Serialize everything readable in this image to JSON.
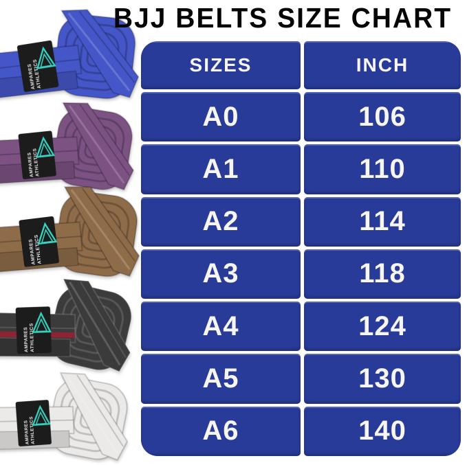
{
  "title": "BJJ BELTS SIZE CHART",
  "table": {
    "headers": [
      "SIZES",
      "INCH"
    ],
    "rows": [
      [
        "A0",
        "106"
      ],
      [
        "A1",
        "110"
      ],
      [
        "A2",
        "114"
      ],
      [
        "A3",
        "118"
      ],
      [
        "A4",
        "124"
      ],
      [
        "A5",
        "130"
      ],
      [
        "A6",
        "140"
      ]
    ],
    "bg_color": "#293b98",
    "text_color": "#f7f5ef"
  },
  "chart_data": {
    "type": "table",
    "title": "BJJ BELTS SIZE CHART",
    "columns": [
      "SIZES",
      "INCH"
    ],
    "rows": [
      [
        "A0",
        106
      ],
      [
        "A1",
        110
      ],
      [
        "A2",
        114
      ],
      [
        "A3",
        118
      ],
      [
        "A4",
        124
      ],
      [
        "A5",
        130
      ],
      [
        "A6",
        140
      ]
    ]
  },
  "brand_label": {
    "line1": "AMPARES",
    "line2": "ATHLETICS",
    "logo_color": "#35d4c2",
    "bg_color": "#1c1c1c",
    "text_color": "#e8e8e8"
  },
  "belts": [
    {
      "id": "blue",
      "name": "blue-belt",
      "color": "#4557c8",
      "shade": "rgba(0,0,0,0.22)"
    },
    {
      "id": "purple",
      "name": "purple-belt",
      "color": "#7c5283",
      "shade": "rgba(0,0,0,0.22)"
    },
    {
      "id": "brown",
      "name": "brown-belt",
      "color": "#8f6c49",
      "shade": "rgba(0,0,0,0.22)"
    },
    {
      "id": "black",
      "name": "black-belt",
      "color": "#3b3b3b",
      "shade": "rgba(255,255,255,0.14)",
      "stripe": "#8e2433"
    },
    {
      "id": "white",
      "name": "white-belt",
      "color": "#eceae8",
      "shade": "rgba(0,0,0,0.18)"
    }
  ]
}
